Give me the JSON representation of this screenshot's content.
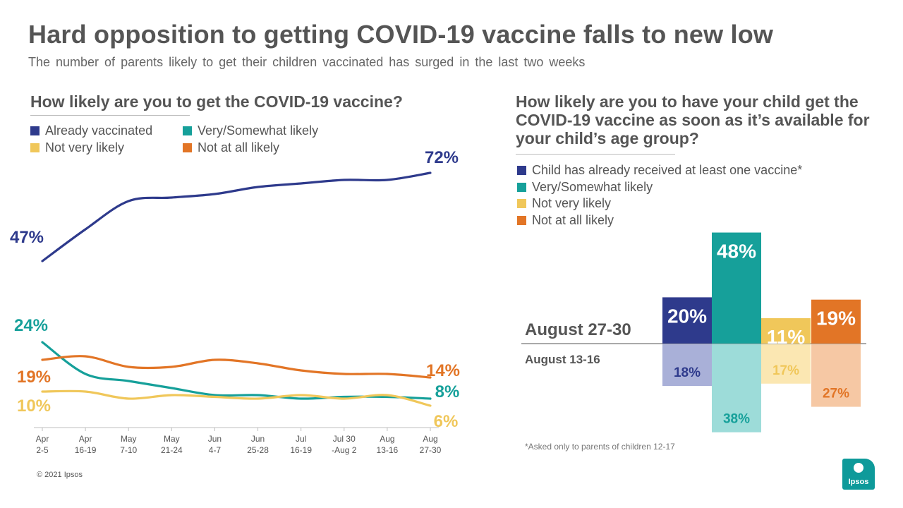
{
  "title": "Hard opposition to getting COVID-19 vaccine falls to new low",
  "subtitle": "The number of parents likely to get their children vaccinated has surged in the last two weeks",
  "colors": {
    "blue": "#2e3a8c",
    "teal": "#16a09a",
    "yellow": "#f0c75a",
    "orange": "#e27526"
  },
  "footnote": "*Asked only to parents of children 12-17",
  "copyright": "© 2021 Ipsos",
  "logo_text": "Ipsos",
  "chart_data": [
    {
      "type": "line",
      "title": "How likely are you to get the COVID-19 vaccine?",
      "categories": [
        [
          "Apr",
          "2-5"
        ],
        [
          "Apr",
          "16-19"
        ],
        [
          "May",
          "7-10"
        ],
        [
          "May",
          "21-24"
        ],
        [
          "Jun",
          "4-7"
        ],
        [
          "Jun",
          "25-28"
        ],
        [
          "Jul",
          "16-19"
        ],
        [
          "Jul 30",
          "-Aug 2"
        ],
        [
          "Aug",
          "13-16"
        ],
        [
          "Aug",
          "27-30"
        ]
      ],
      "series": [
        {
          "name": "Already vaccinated",
          "color": "#2e3a8c",
          "values": [
            47,
            56,
            64,
            65,
            66,
            68,
            69,
            70,
            70,
            72
          ],
          "start_label": "47%",
          "end_label": "72%"
        },
        {
          "name": "Very/Somewhat likely",
          "color": "#16a09a",
          "values": [
            24,
            15,
            13,
            11,
            9,
            9,
            8,
            8.5,
            8.5,
            8
          ],
          "start_label": "24%",
          "end_label": "8%"
        },
        {
          "name": "Not very likely",
          "color": "#f0c75a",
          "values": [
            10,
            10,
            8,
            9,
            8.5,
            8,
            9,
            8,
            9,
            6
          ],
          "start_label": "10%",
          "end_label": "6%"
        },
        {
          "name": "Not at all likely",
          "color": "#e27526",
          "values": [
            19,
            20,
            17,
            17,
            19,
            18,
            16,
            15,
            15,
            14
          ],
          "start_label": "19%",
          "end_label": "14%"
        }
      ],
      "legend": [
        "Already vaccinated",
        "Very/Somewhat likely",
        "Not very likely",
        "Not at all likely"
      ],
      "ylim": [
        0,
        80
      ]
    },
    {
      "type": "bar",
      "title": "How likely are you to have your child get the COVID-19 vaccine as soon as it’s available for your child’s age group?",
      "categories": [
        "Child has already received at least one vaccine*",
        "Very/Somewhat likely",
        "Not very likely",
        "Not at all likely"
      ],
      "series": [
        {
          "name": "August 27-30",
          "values": [
            20,
            48,
            11,
            19
          ],
          "labels": [
            "20%",
            "48%",
            "11%",
            "19%"
          ]
        },
        {
          "name": "August 13-16",
          "values": [
            18,
            38,
            17,
            27
          ],
          "labels": [
            "18%",
            "38%",
            "17%",
            "27%"
          ]
        }
      ],
      "colors": [
        "#2e3a8c",
        "#16a09a",
        "#f0c75a",
        "#e27526"
      ],
      "faded_colors": [
        "#a9b0d8",
        "#9ddcd9",
        "#fbe7b2",
        "#f6c8a4"
      ]
    }
  ]
}
